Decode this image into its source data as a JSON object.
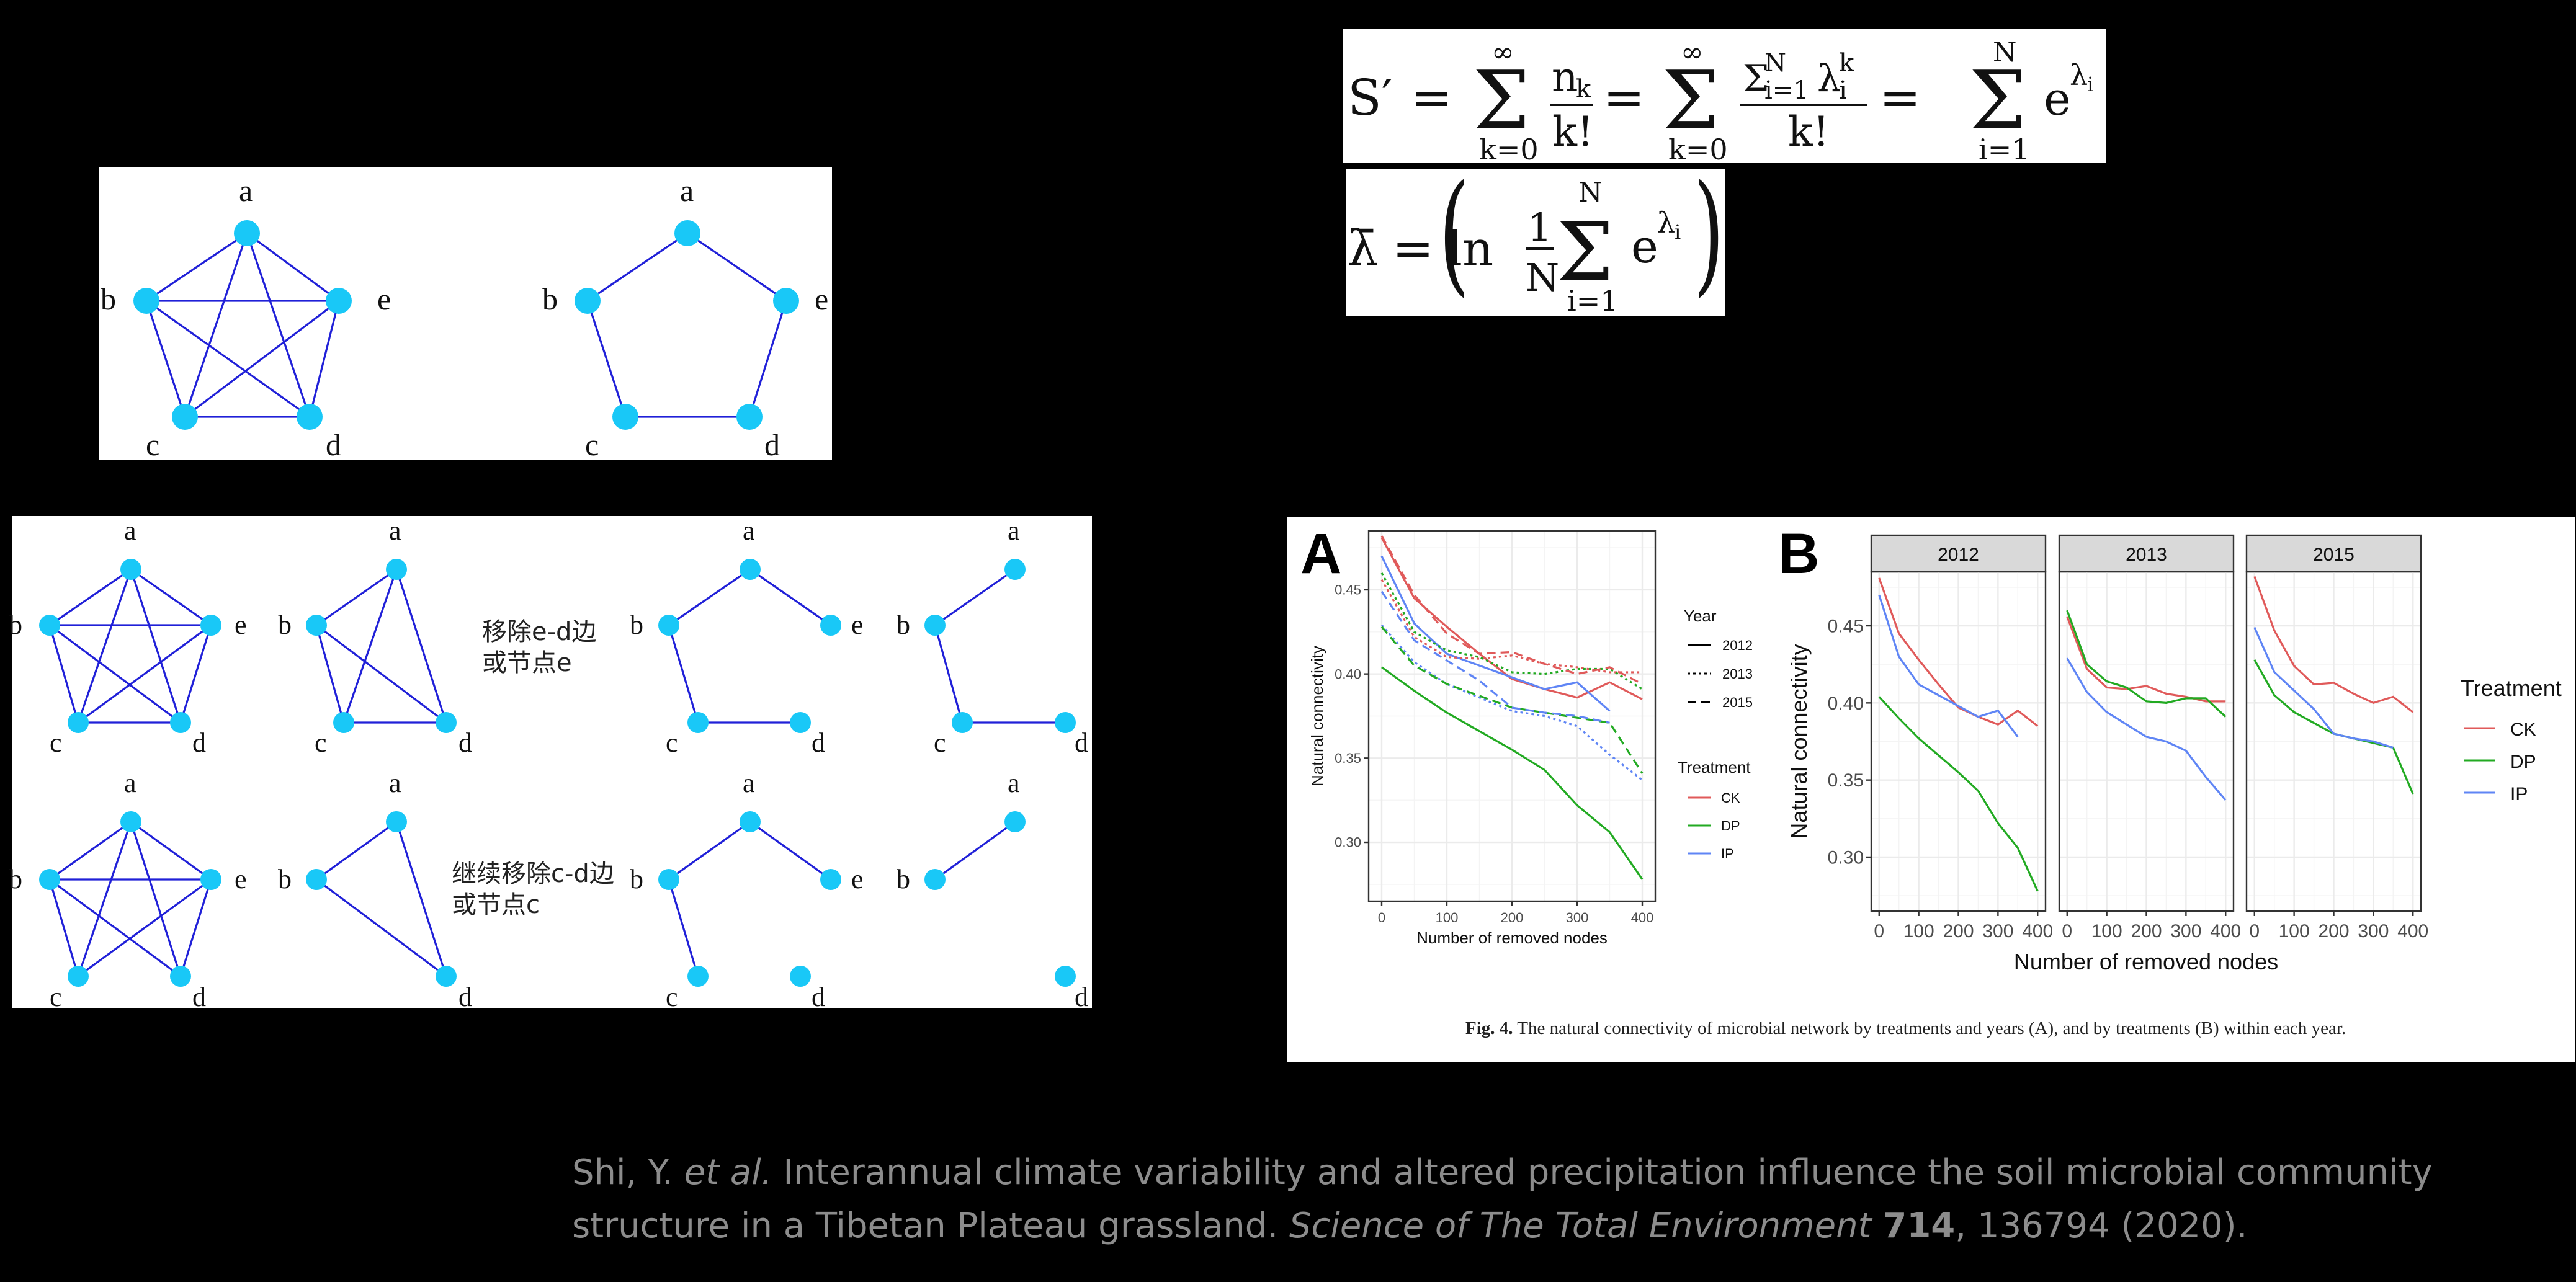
{
  "network_diagrams": {
    "node_color": "#19c8f7",
    "edge_color": "#2020d8",
    "top_panel": {
      "graphs": [
        {
          "name": "complete-graph",
          "nodes": [
            "a",
            "b",
            "c",
            "d",
            "e"
          ],
          "edges": [
            [
              "a",
              "b"
            ],
            [
              "a",
              "c"
            ],
            [
              "a",
              "d"
            ],
            [
              "a",
              "e"
            ],
            [
              "b",
              "c"
            ],
            [
              "b",
              "d"
            ],
            [
              "b",
              "e"
            ],
            [
              "c",
              "d"
            ],
            [
              "c",
              "e"
            ],
            [
              "d",
              "e"
            ]
          ]
        },
        {
          "name": "cycle-graph",
          "nodes": [
            "a",
            "b",
            "c",
            "d",
            "e"
          ],
          "edges": [
            [
              "a",
              "b"
            ],
            [
              "a",
              "e"
            ],
            [
              "b",
              "c"
            ],
            [
              "c",
              "d"
            ],
            [
              "d",
              "e"
            ]
          ]
        }
      ]
    },
    "bottom_panel": {
      "row1_annotation_line1": "移除e-d边",
      "row1_annotation_line2": "或节点e",
      "row2_annotation_line1": "继续移除c-d边",
      "row2_annotation_line2": "或节点c",
      "graphs": [
        {
          "row": 1,
          "col": 1,
          "nodes": [
            "a",
            "b",
            "c",
            "d",
            "e"
          ],
          "edges": [
            [
              "a",
              "b"
            ],
            [
              "a",
              "c"
            ],
            [
              "a",
              "d"
            ],
            [
              "a",
              "e"
            ],
            [
              "b",
              "c"
            ],
            [
              "b",
              "d"
            ],
            [
              "b",
              "e"
            ],
            [
              "c",
              "d"
            ],
            [
              "c",
              "e"
            ],
            [
              "d",
              "e"
            ]
          ]
        },
        {
          "row": 1,
          "col": 2,
          "nodes": [
            "a",
            "b",
            "c",
            "d"
          ],
          "edges": [
            [
              "a",
              "b"
            ],
            [
              "a",
              "c"
            ],
            [
              "a",
              "d"
            ],
            [
              "b",
              "c"
            ],
            [
              "b",
              "d"
            ],
            [
              "c",
              "d"
            ]
          ]
        },
        {
          "row": 1,
          "col": 3,
          "nodes": [
            "a",
            "b",
            "c",
            "d",
            "e"
          ],
          "edges": [
            [
              "a",
              "b"
            ],
            [
              "a",
              "e"
            ],
            [
              "b",
              "c"
            ],
            [
              "c",
              "d"
            ]
          ]
        },
        {
          "row": 1,
          "col": 4,
          "nodes": [
            "a",
            "b",
            "c",
            "d"
          ],
          "edges": [
            [
              "a",
              "b"
            ],
            [
              "b",
              "c"
            ],
            [
              "c",
              "d"
            ]
          ]
        },
        {
          "row": 2,
          "col": 1,
          "nodes": [
            "a",
            "b",
            "c",
            "d",
            "e"
          ],
          "edges": [
            [
              "a",
              "b"
            ],
            [
              "a",
              "c"
            ],
            [
              "a",
              "d"
            ],
            [
              "a",
              "e"
            ],
            [
              "b",
              "c"
            ],
            [
              "b",
              "d"
            ],
            [
              "b",
              "e"
            ],
            [
              "c",
              "e"
            ],
            [
              "d",
              "e"
            ]
          ]
        },
        {
          "row": 2,
          "col": 2,
          "nodes": [
            "a",
            "b",
            "d"
          ],
          "edges": [
            [
              "a",
              "b"
            ],
            [
              "a",
              "d"
            ],
            [
              "b",
              "d"
            ]
          ]
        },
        {
          "row": 2,
          "col": 3,
          "nodes": [
            "a",
            "b",
            "c",
            "d",
            "e"
          ],
          "edges": [
            [
              "a",
              "b"
            ],
            [
              "a",
              "e"
            ],
            [
              "b",
              "c"
            ]
          ]
        },
        {
          "row": 2,
          "col": 4,
          "nodes": [
            "a",
            "b",
            "d"
          ],
          "edges": [
            [
              "a",
              "b"
            ]
          ]
        }
      ]
    }
  },
  "formulas": {
    "formula1": {
      "lhs": "S′",
      "eq": "=",
      "sum1_upper": "∞",
      "sum1_lower": "k=0",
      "frac1_num": "n",
      "frac1_num_sub": "k",
      "frac1_den": "k!",
      "sum2_upper": "∞",
      "sum2_lower": "k=0",
      "frac2_num_sum": "Σ",
      "frac2_num_sup": "N",
      "frac2_num_sub": "i=1",
      "frac2_num_lambda": "λ",
      "frac2_num_lambda_sup": "k",
      "frac2_num_lambda_sub": "i",
      "frac2_den": "k!",
      "sum3_upper": "N",
      "sum3_lower": "i=1",
      "term": "e",
      "term_sup": "λ",
      "term_sup_sub": "i"
    },
    "formula2": {
      "lhs": "λ̄",
      "eq": "=",
      "ln": "ln",
      "frac_num": "1",
      "frac_den": "N",
      "sum_upper": "N",
      "sum_lower": "i=1",
      "term": "e",
      "term_sup": "λ",
      "term_sup_sub": "i"
    }
  },
  "figure": {
    "panel_a_label": "A",
    "panel_b_label": "B",
    "caption_bold": "Fig. 4.",
    "caption_text": " The natural connectivity of microbial network by treatments and years (A), and by treatments (B) within each year.",
    "colors": {
      "CK": "#e05a5a",
      "DP": "#22aa22",
      "IP": "#5f85f5"
    }
  },
  "chart_data": [
    {
      "type": "line",
      "title": "A",
      "xlabel": "Number of removed nodes",
      "ylabel": "Natural connectivity",
      "x_ticks": [
        0,
        100,
        200,
        300,
        400
      ],
      "y_ticks": [
        0.3,
        0.35,
        0.4,
        0.45
      ],
      "y_tick_labels": [
        "0.30",
        "0.35",
        "0.40",
        "0.45"
      ],
      "xlim": [
        -20,
        440
      ],
      "ylim": [
        0.265,
        0.485
      ],
      "grid": true,
      "legend_position": "right",
      "legend": {
        "year_title": "Year",
        "year_entries": [
          {
            "label": "2012",
            "linetype": "solid"
          },
          {
            "label": "2013",
            "linetype": "dotted"
          },
          {
            "label": "2015",
            "linetype": "dashed"
          }
        ],
        "treatment_title": "Treatment",
        "treatment_entries": [
          {
            "label": "CK",
            "color": "#e05a5a"
          },
          {
            "label": "DP",
            "color": "#22aa22"
          },
          {
            "label": "IP",
            "color": "#5f85f5"
          }
        ]
      },
      "x": [
        0,
        50,
        100,
        150,
        200,
        250,
        300,
        350,
        400
      ],
      "series": [
        {
          "name": "CK 2012",
          "treatment": "CK",
          "year": "2012",
          "linetype": "solid",
          "values": [
            0.481,
            0.445,
            0.428,
            0.412,
            0.397,
            0.391,
            0.386,
            0.395,
            0.385
          ]
        },
        {
          "name": "DP 2012",
          "treatment": "DP",
          "year": "2012",
          "linetype": "solid",
          "values": [
            0.404,
            0.39,
            0.377,
            0.366,
            0.355,
            0.343,
            0.322,
            0.306,
            0.278
          ]
        },
        {
          "name": "IP 2012",
          "treatment": "IP",
          "year": "2012",
          "linetype": "solid",
          "values": [
            0.47,
            0.43,
            0.412,
            0.405,
            0.398,
            0.391,
            0.395,
            0.378,
            null
          ]
        },
        {
          "name": "CK 2013",
          "treatment": "CK",
          "year": "2013",
          "linetype": "dotted",
          "values": [
            0.456,
            0.422,
            0.41,
            0.409,
            0.411,
            0.406,
            0.404,
            0.401,
            0.401
          ]
        },
        {
          "name": "DP 2013",
          "treatment": "DP",
          "year": "2013",
          "linetype": "dotted",
          "values": [
            0.46,
            0.425,
            0.414,
            0.41,
            0.401,
            0.4,
            0.403,
            0.403,
            0.391
          ]
        },
        {
          "name": "IP 2013",
          "treatment": "IP",
          "year": "2013",
          "linetype": "dotted",
          "values": [
            0.429,
            0.407,
            0.394,
            0.386,
            0.378,
            0.375,
            0.369,
            0.352,
            0.337
          ]
        },
        {
          "name": "CK 2015",
          "treatment": "CK",
          "year": "2015",
          "linetype": "dashed",
          "values": [
            0.482,
            0.447,
            0.424,
            0.412,
            0.413,
            0.406,
            0.4,
            0.404,
            0.394
          ]
        },
        {
          "name": "DP 2015",
          "treatment": "DP",
          "year": "2015",
          "linetype": "dashed",
          "values": [
            0.428,
            0.405,
            0.394,
            0.387,
            0.38,
            0.377,
            0.374,
            0.371,
            0.341
          ]
        },
        {
          "name": "IP 2015",
          "treatment": "IP",
          "year": "2015",
          "linetype": "dashed",
          "values": [
            0.449,
            0.42,
            0.408,
            0.396,
            0.38,
            0.377,
            0.375,
            0.371,
            null
          ]
        }
      ]
    },
    {
      "type": "line",
      "title": "B",
      "facets": [
        "2012",
        "2013",
        "2015"
      ],
      "xlabel": "Number of removed nodes",
      "ylabel": "Natural connectivity",
      "x_ticks": [
        0,
        100,
        200,
        300,
        400
      ],
      "y_ticks": [
        0.3,
        0.35,
        0.4,
        0.45
      ],
      "y_tick_labels": [
        "0.30",
        "0.35",
        "0.40",
        "0.45"
      ],
      "ylim": [
        0.265,
        0.485
      ],
      "grid": true,
      "legend_position": "right",
      "legend": {
        "title": "Treatment",
        "entries": [
          {
            "label": "CK",
            "color": "#e05a5a"
          },
          {
            "label": "DP",
            "color": "#22aa22"
          },
          {
            "label": "IP",
            "color": "#5f85f5"
          }
        ]
      },
      "x": [
        0,
        50,
        100,
        150,
        200,
        250,
        300,
        350,
        400
      ],
      "panels": [
        {
          "facet": "2012",
          "series": [
            {
              "name": "CK",
              "values": [
                0.481,
                0.445,
                0.428,
                0.412,
                0.397,
                0.391,
                0.386,
                0.395,
                0.385
              ]
            },
            {
              "name": "DP",
              "values": [
                0.404,
                0.39,
                0.377,
                0.366,
                0.355,
                0.343,
                0.322,
                0.306,
                0.278
              ]
            },
            {
              "name": "IP",
              "values": [
                0.47,
                0.43,
                0.412,
                0.405,
                0.398,
                0.391,
                0.395,
                0.378,
                null
              ]
            }
          ]
        },
        {
          "facet": "2013",
          "series": [
            {
              "name": "CK",
              "values": [
                0.456,
                0.422,
                0.41,
                0.409,
                0.411,
                0.406,
                0.404,
                0.401,
                0.401
              ]
            },
            {
              "name": "DP",
              "values": [
                0.46,
                0.425,
                0.414,
                0.41,
                0.401,
                0.4,
                0.403,
                0.403,
                0.391
              ]
            },
            {
              "name": "IP",
              "values": [
                0.429,
                0.407,
                0.394,
                0.386,
                0.378,
                0.375,
                0.369,
                0.352,
                0.337
              ]
            }
          ]
        },
        {
          "facet": "2015",
          "series": [
            {
              "name": "CK",
              "values": [
                0.482,
                0.447,
                0.424,
                0.412,
                0.413,
                0.406,
                0.4,
                0.404,
                0.394
              ]
            },
            {
              "name": "DP",
              "values": [
                0.428,
                0.405,
                0.394,
                0.387,
                0.38,
                0.377,
                0.374,
                0.371,
                0.341
              ]
            },
            {
              "name": "IP",
              "values": [
                0.449,
                0.42,
                0.408,
                0.396,
                0.38,
                0.377,
                0.375,
                0.371,
                null
              ]
            }
          ]
        }
      ]
    }
  ],
  "citation": {
    "authors": "Shi, Y. ",
    "et_al": "et al.",
    "title_line1": " Interannual climate variability and altered precipitation influence the soil microbial community",
    "title_line2": "structure in a Tibetan Plateau grassland. ",
    "journal": "Science of The Total Environment",
    "volume": "714",
    "pages_year": ", 136794 (2020)."
  }
}
